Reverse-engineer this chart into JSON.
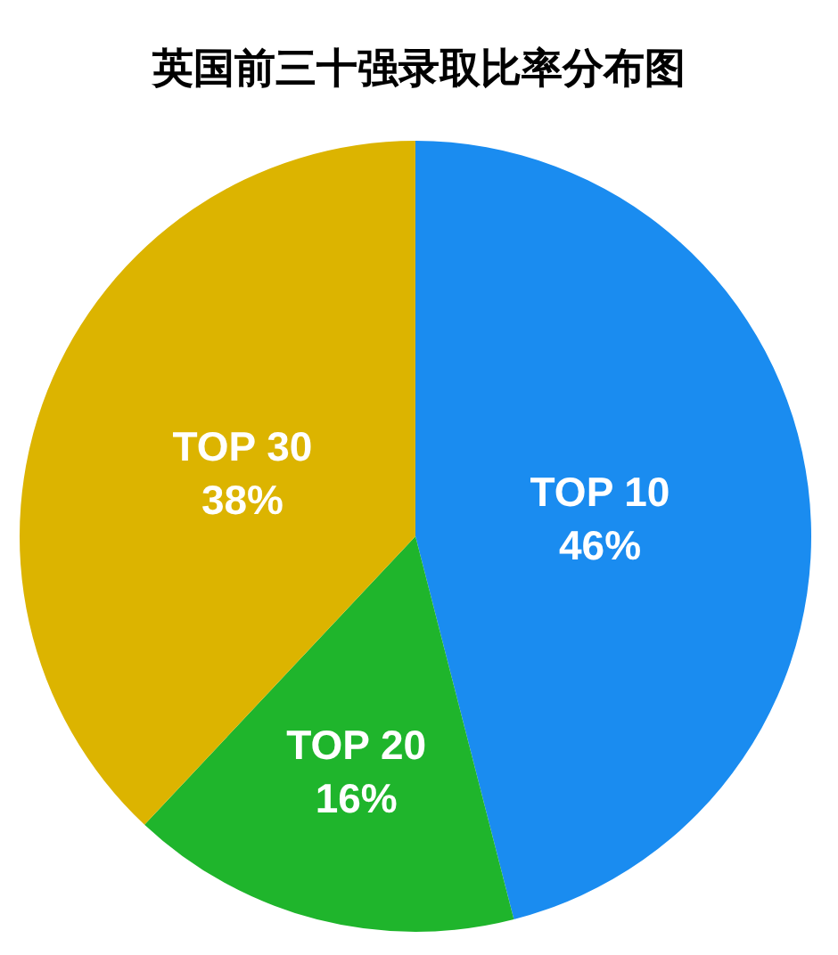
{
  "chart_data": {
    "type": "pie",
    "title": "英国前三十强录取比率分布图",
    "categories": [
      "TOP 10",
      "TOP 20",
      "TOP 30"
    ],
    "values": [
      46,
      16,
      38
    ],
    "colors": [
      "#1a8cf0",
      "#1fb52c",
      "#dcb400"
    ],
    "value_labels": [
      "46%",
      "16%",
      "38%"
    ]
  }
}
